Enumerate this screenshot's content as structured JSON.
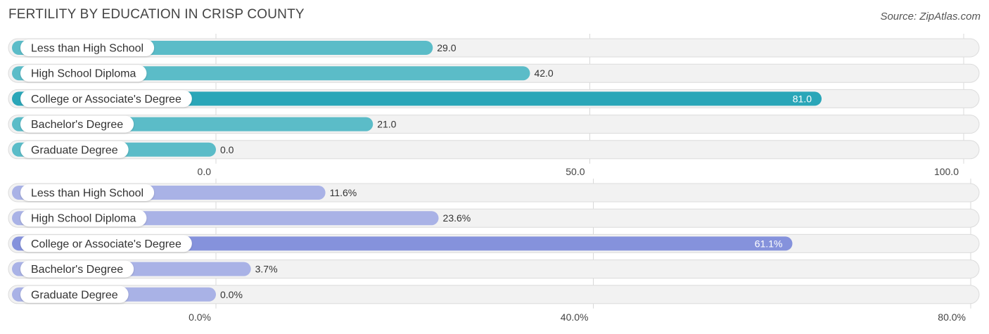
{
  "header": {
    "title": "FERTILITY BY EDUCATION IN CRISP COUNTY",
    "source": "Source: ZipAtlas.com"
  },
  "chart_data": [
    {
      "type": "bar",
      "orientation": "horizontal",
      "categories": [
        "Less than High School",
        "High School Diploma",
        "College or Associate's Degree",
        "Bachelor's Degree",
        "Graduate Degree"
      ],
      "values": [
        29.0,
        42.0,
        81.0,
        21.0,
        0.0
      ],
      "value_labels": [
        "29.0",
        "42.0",
        "81.0",
        "21.0",
        "0.0"
      ],
      "xlim": [
        0,
        100
      ],
      "ticks": [
        0,
        50,
        100
      ],
      "tick_labels": [
        "0.0",
        "50.0",
        "100.0"
      ],
      "color": "#5bbcc8",
      "highlight_color": "#2aa6b8",
      "highlight_index": 2,
      "grid": true
    },
    {
      "type": "bar",
      "orientation": "horizontal",
      "categories": [
        "Less than High School",
        "High School Diploma",
        "College or Associate's Degree",
        "Bachelor's Degree",
        "Graduate Degree"
      ],
      "values": [
        11.6,
        23.6,
        61.1,
        3.7,
        0.0
      ],
      "value_labels": [
        "11.6%",
        "23.6%",
        "61.1%",
        "3.7%",
        "0.0%"
      ],
      "xlim": [
        0,
        80
      ],
      "ticks": [
        0,
        40,
        80
      ],
      "tick_labels": [
        "0.0%",
        "40.0%",
        "80.0%"
      ],
      "color": "#a9b2e6",
      "highlight_color": "#8592dc",
      "highlight_index": 2,
      "grid": true
    }
  ]
}
